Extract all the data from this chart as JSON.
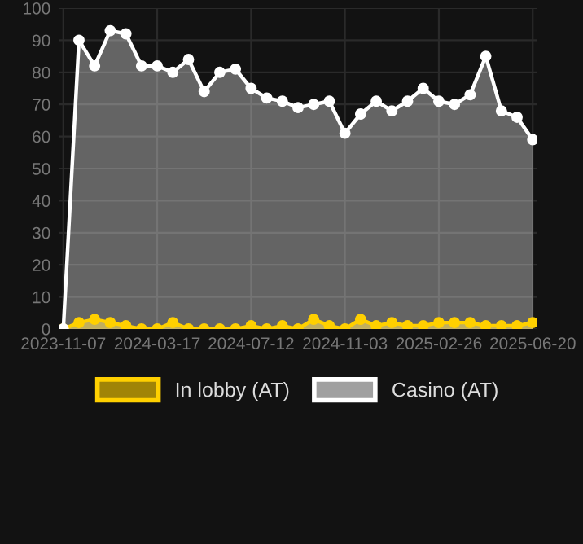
{
  "chart_data": {
    "type": "area",
    "categories": [
      "2023-11-07",
      null,
      null,
      null,
      null,
      null,
      "2024-03-17",
      null,
      null,
      null,
      null,
      null,
      "2024-07-12",
      null,
      null,
      null,
      null,
      null,
      "2024-11-03",
      null,
      null,
      null,
      null,
      null,
      "2025-02-26",
      null,
      null,
      null,
      null,
      null,
      "2025-06-20"
    ],
    "series": [
      {
        "name": "In lobby (AT)",
        "color": "#ffd000",
        "values": [
          0,
          2,
          3,
          2,
          1,
          0,
          0,
          2,
          0,
          0,
          0,
          0,
          1,
          0,
          1,
          0,
          3,
          1,
          0,
          3,
          1,
          2,
          1,
          1,
          2,
          2,
          2,
          1,
          1,
          1,
          2
        ]
      },
      {
        "name": "Casino (AT)",
        "color": "#ffffff",
        "values": [
          0,
          90,
          82,
          93,
          92,
          82,
          82,
          80,
          84,
          74,
          80,
          81,
          75,
          72,
          71,
          69,
          70,
          71,
          61,
          67,
          71,
          68,
          71,
          75,
          71,
          70,
          73,
          85,
          68,
          66,
          59
        ]
      }
    ],
    "ylim": [
      0,
      100
    ],
    "yticks": [
      0,
      10,
      20,
      30,
      40,
      50,
      60,
      70,
      80,
      90,
      100
    ],
    "grid": true,
    "legend": "bottom",
    "marker": "circle"
  }
}
